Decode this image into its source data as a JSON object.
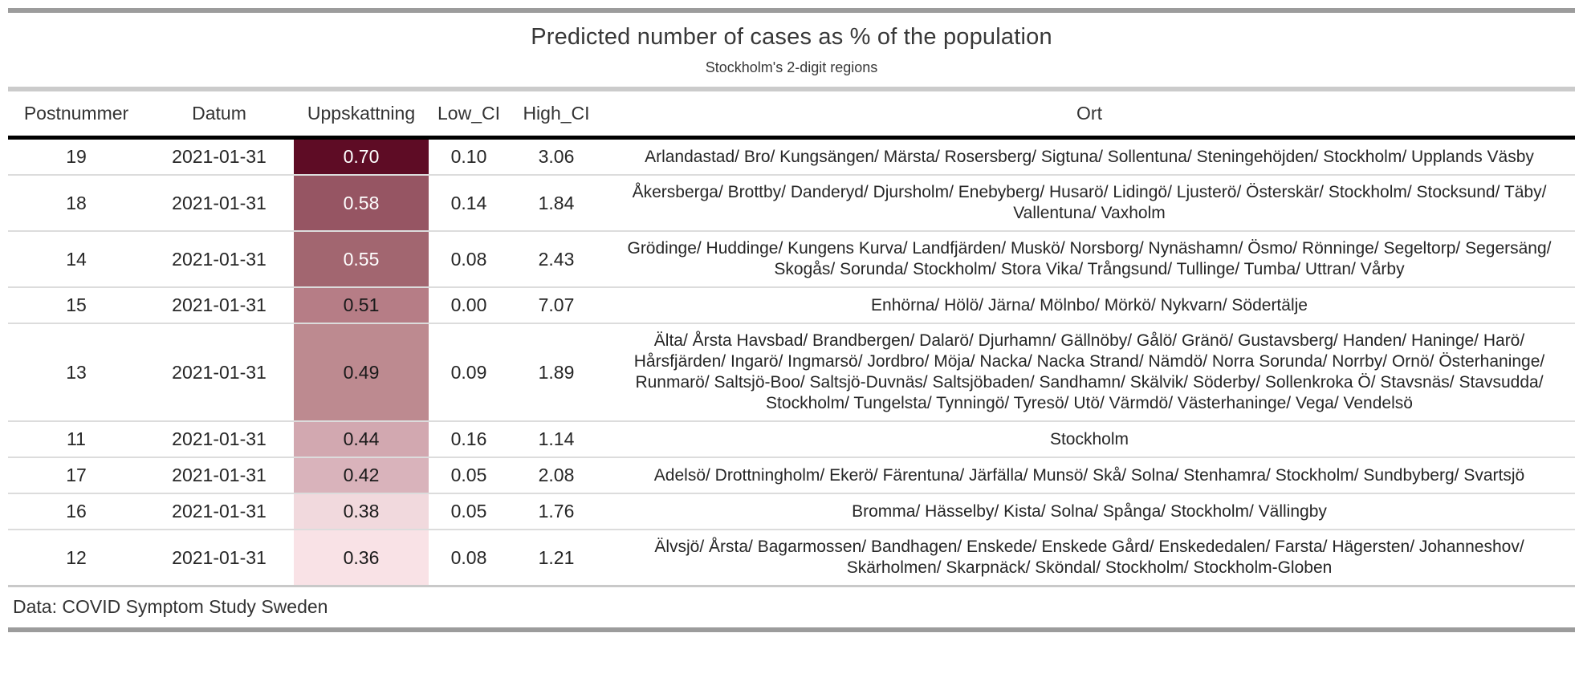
{
  "chart_data": {
    "type": "table",
    "title": "Predicted number of cases as % of the population",
    "subtitle": "Stockholm's 2-digit regions",
    "source_note": "Data: COVID Symptom Study Sweden",
    "columns": [
      "Postnummer",
      "Datum",
      "Uppskattning",
      "Low_CI",
      "High_CI",
      "Ort"
    ],
    "heatmap_column": "Uppskattning",
    "rows": [
      {
        "postnummer": "19",
        "datum": "2021-01-31",
        "uppskattning": "0.70",
        "low_ci": "0.10",
        "high_ci": "3.06",
        "ort": "Arlandastad/ Bro/ Kungsängen/ Märsta/ Rosersberg/ Sigtuna/ Sollentuna/ Steningehöjden/ Stockholm/ Upplands Väsby",
        "cell_bg": "#5E0C25",
        "cell_fg": "#FFFFFF"
      },
      {
        "postnummer": "18",
        "datum": "2021-01-31",
        "uppskattning": "0.58",
        "low_ci": "0.14",
        "high_ci": "1.84",
        "ort": "Åkersberga/ Brottby/ Danderyd/ Djursholm/ Enebyberg/ Husarö/ Lidingö/ Ljusterö/ Österskär/ Stockholm/ Stocksund/ Täby/ Vallentuna/ Vaxholm",
        "cell_bg": "#965563",
        "cell_fg": "#FFFFFF"
      },
      {
        "postnummer": "14",
        "datum": "2021-01-31",
        "uppskattning": "0.55",
        "low_ci": "0.08",
        "high_ci": "2.43",
        "ort": "Grödinge/ Huddinge/ Kungens Kurva/ Landfjärden/ Muskö/ Norsborg/ Nynäshamn/ Ösmo/ Rönninge/ Segeltorp/ Segersäng/ Skogås/ Sorunda/ Stockholm/ Stora Vika/ Trångsund/ Tullinge/ Tumba/ Uttran/ Vårby",
        "cell_bg": "#A26670",
        "cell_fg": "#FFFFFF"
      },
      {
        "postnummer": "15",
        "datum": "2021-01-31",
        "uppskattning": "0.51",
        "low_ci": "0.00",
        "high_ci": "7.07",
        "ort": "Enhörna/ Hölö/ Järna/ Mölnbo/ Mörkö/ Nykvarn/ Södertälje",
        "cell_bg": "#B67D86",
        "cell_fg": "#1a1a1a"
      },
      {
        "postnummer": "13",
        "datum": "2021-01-31",
        "uppskattning": "0.49",
        "low_ci": "0.09",
        "high_ci": "1.89",
        "ort": "Älta/ Årsta Havsbad/ Brandbergen/ Dalarö/ Djurhamn/ Gällnöby/ Gålö/ Gränö/ Gustavsberg/ Handen/ Haninge/ Harö/ Hårsfjärden/ Ingarö/ Ingmarsö/ Jordbro/ Möja/ Nacka/ Nacka Strand/ Nämdö/ Norra Sorunda/ Norrby/ Ornö/ Österhaninge/ Runmarö/ Saltsjö-Boo/ Saltsjö-Duvnäs/ Saltsjöbaden/ Sandhamn/ Skälvik/ Söderby/ Sollenkroka Ö/ Stavsnäs/ Stavsudda/ Stockholm/ Tungelsta/ Tynningö/ Tyresö/ Utö/ Värmdö/ Västerhaninge/ Vega/ Vendelsö",
        "cell_bg": "#BD8A90",
        "cell_fg": "#1a1a1a"
      },
      {
        "postnummer": "11",
        "datum": "2021-01-31",
        "uppskattning": "0.44",
        "low_ci": "0.16",
        "high_ci": "1.14",
        "ort": "Stockholm",
        "cell_bg": "#D2A8B0",
        "cell_fg": "#1a1a1a"
      },
      {
        "postnummer": "17",
        "datum": "2021-01-31",
        "uppskattning": "0.42",
        "low_ci": "0.05",
        "high_ci": "2.08",
        "ort": "Adelsö/ Drottningholm/ Ekerö/ Färentuna/ Järfälla/ Munsö/ Skå/ Solna/ Stenhamra/ Stockholm/ Sundbyberg/ Svartsjö",
        "cell_bg": "#D9B3BB",
        "cell_fg": "#1a1a1a"
      },
      {
        "postnummer": "16",
        "datum": "2021-01-31",
        "uppskattning": "0.38",
        "low_ci": "0.05",
        "high_ci": "1.76",
        "ort": "Bromma/ Hässelby/ Kista/ Solna/ Spånga/ Stockholm/ Vällingby",
        "cell_bg": "#F1D9DD",
        "cell_fg": "#1a1a1a"
      },
      {
        "postnummer": "12",
        "datum": "2021-01-31",
        "uppskattning": "0.36",
        "low_ci": "0.08",
        "high_ci": "1.21",
        "ort": "Älvsjö/ Årsta/ Bagarmossen/ Bandhagen/ Enskede/ Enskede Gård/ Enskededalen/ Farsta/ Hägersten/ Johanneshov/ Skärholmen/ Skarpnäck/ Sköndal/ Stockholm/ Stockholm-Globen",
        "cell_bg": "#F9E2E6",
        "cell_fg": "#1a1a1a"
      }
    ],
    "colors": {
      "heatmap_max": "#5E0C25",
      "heatmap_min": "#F9E2E6",
      "outer_rule": "#9C9C9C",
      "inner_rule": "#CBCBCB",
      "header_rule": "#000000",
      "row_separator": "#DCDCDC"
    }
  }
}
